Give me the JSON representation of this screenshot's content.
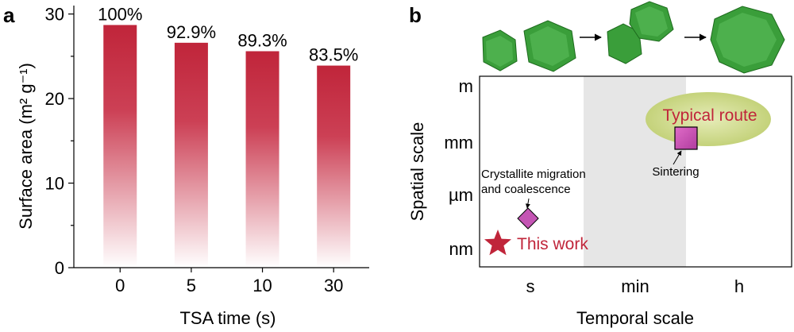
{
  "chart_data": [
    {
      "panel": "a",
      "type": "bar",
      "categories": [
        "0",
        "5",
        "10",
        "30"
      ],
      "values": [
        28.7,
        26.6,
        25.6,
        23.9
      ],
      "data_labels": [
        "100%",
        "92.9%",
        "89.3%",
        "83.5%"
      ],
      "xlabel": "TSA time (s)",
      "ylabel": "Surface area (m² g⁻¹)",
      "ylim": [
        0,
        31
      ],
      "yticks": [
        0,
        10,
        20,
        30
      ],
      "colors": {
        "bar_top": "#c0253a",
        "bar_bottom": "#ffffff"
      }
    },
    {
      "panel": "b",
      "type": "scatter",
      "xlabel": "Temporal scale",
      "ylabel": "Spatial scale",
      "x_categories": [
        "s",
        "min",
        "h"
      ],
      "y_categories": [
        "nm",
        "µm",
        "mm",
        "m"
      ],
      "points": [
        {
          "name": "This work",
          "marker": "star",
          "x": "s",
          "y": "nm",
          "color": "#c0253a"
        },
        {
          "name": "Crystallite migration and coalescence",
          "marker": "diamond",
          "x": "s",
          "y": "nm–µm",
          "color": "#c455b4"
        },
        {
          "name": "Sintering",
          "marker": "square",
          "x": "min–h",
          "y": "mm",
          "color": "#c455b4"
        }
      ],
      "annotations": {
        "this_work": "This work",
        "typical_route": "Typical route",
        "cmc_line1": "Crystallite migration",
        "cmc_line2": "and coalescence",
        "sintering": "Sintering"
      },
      "shaded_region": "min",
      "colors": {
        "shade": "#e6e6e6",
        "ellipse": "#cfd98a",
        "text_red": "#c0253a",
        "particle": "#3a9e3a"
      }
    }
  ],
  "panel_labels": {
    "a": "a",
    "b": "b"
  }
}
